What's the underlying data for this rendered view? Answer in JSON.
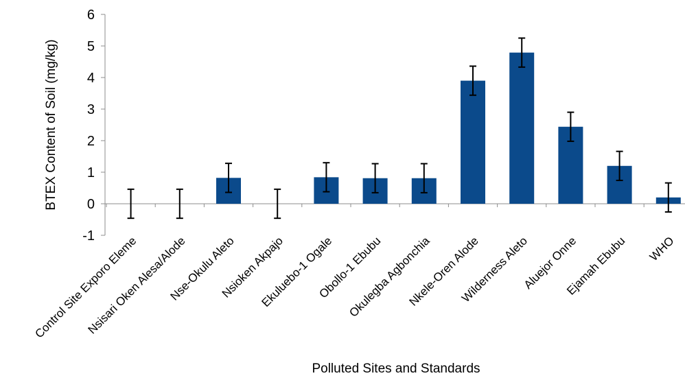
{
  "chart_data": {
    "type": "bar",
    "title": "",
    "xlabel": "Polluted Sites and Standards",
    "ylabel": "BTEX Content of Soil (mg/kg)",
    "ylim": [
      -1,
      6
    ],
    "yticks": [
      "-1",
      "0",
      "1",
      "2",
      "3",
      "4",
      "5",
      "6"
    ],
    "grid": false,
    "categories": [
      "Control Site Exporo Eleme",
      "Nsisari Oken Alesa/Alode",
      "Nse-Okulu Aleto",
      "Nsioken Akpajo",
      "Ekuluebo-1 Ogale",
      "Obollo-1 Ebubu",
      "Okulegba Agbonchia",
      "Nkele-Oren Alode",
      "Wilderness Aleto",
      "Aluejor Onne",
      "Ejamah Ebubu",
      "WHO"
    ],
    "values": [
      0,
      0,
      0.82,
      0,
      0.84,
      0.81,
      0.81,
      3.9,
      4.79,
      2.44,
      1.2,
      0.2
    ],
    "errors": [
      0.46,
      0.46,
      0.46,
      0.46,
      0.46,
      0.46,
      0.46,
      0.46,
      0.46,
      0.46,
      0.46,
      0.46
    ],
    "bar_color": "#0b4a8b",
    "error_color": "#000000"
  }
}
